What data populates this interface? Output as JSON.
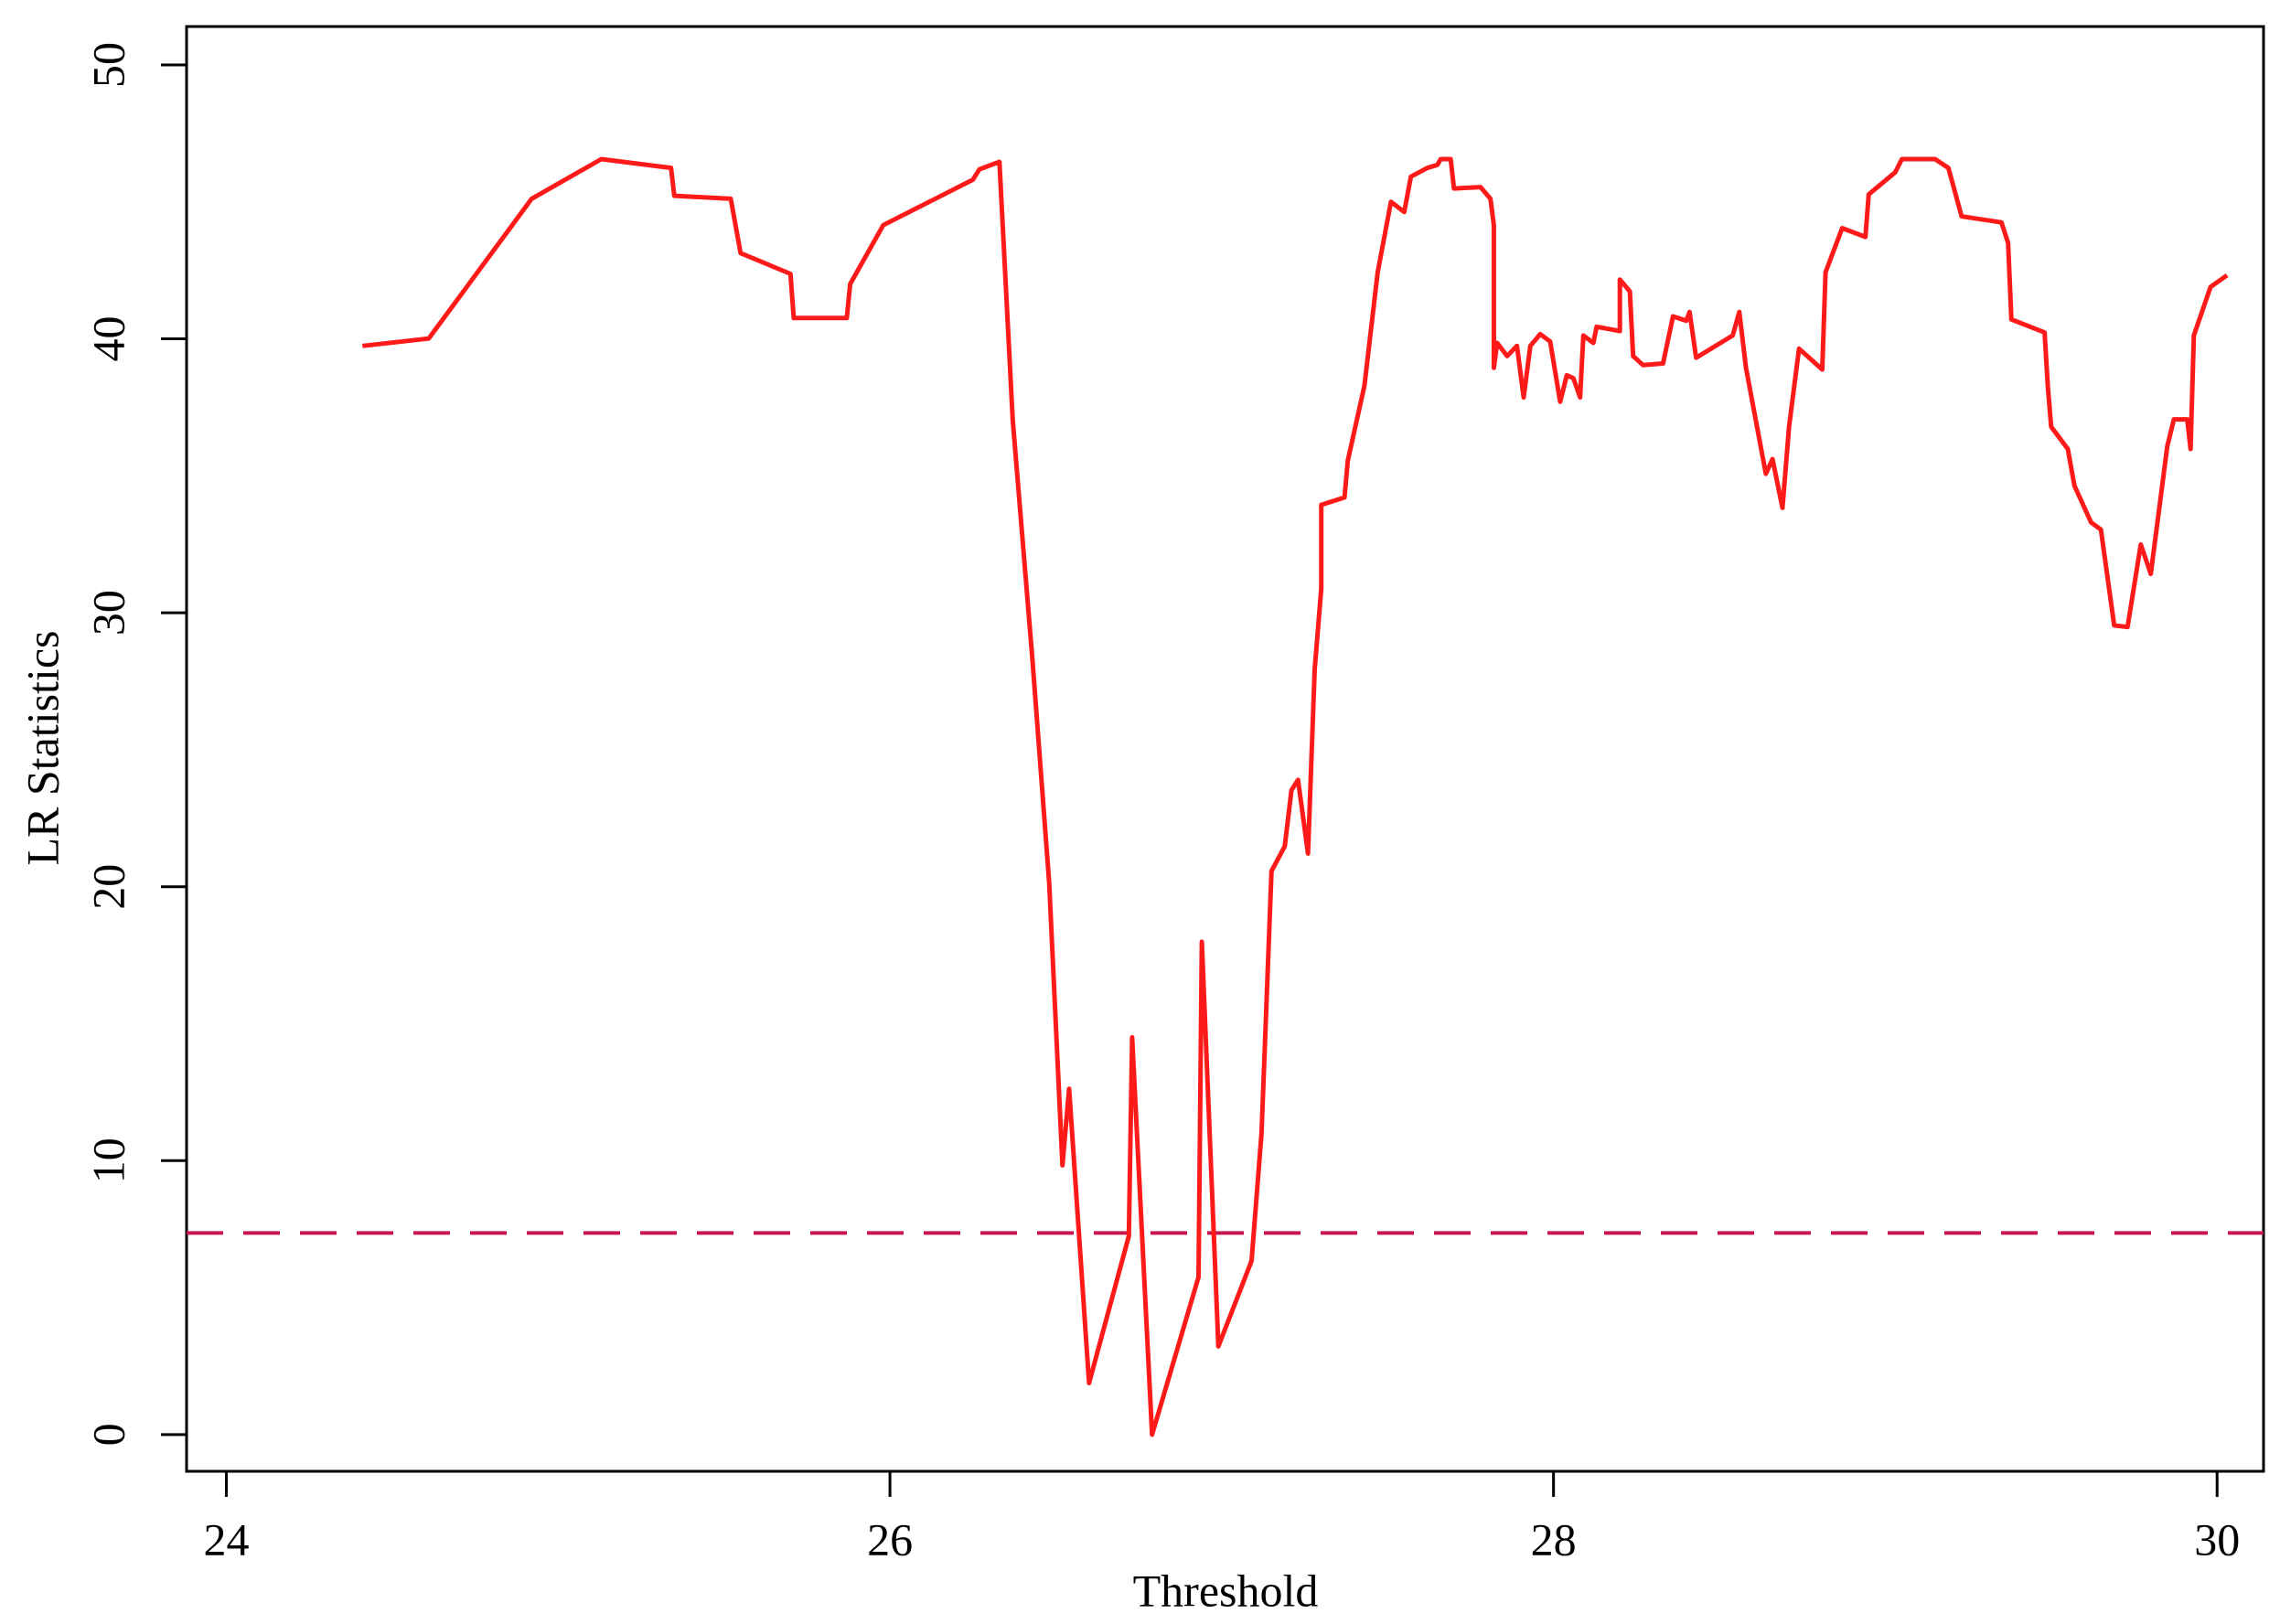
{
  "chart_data": {
    "type": "line",
    "x_label": "Threshold",
    "y_label": "LR Statistics",
    "x": [
      24.41,
      24.61,
      24.92,
      25.13,
      25.34,
      25.35,
      25.52,
      25.55,
      25.7,
      25.71,
      25.87,
      25.88,
      25.98,
      26.25,
      26.27,
      26.33,
      26.37,
      26.43,
      26.48,
      26.52,
      26.54,
      26.6,
      26.72,
      26.73,
      26.79,
      26.93,
      26.94,
      26.99,
      27.09,
      27.12,
      27.15,
      27.19,
      27.21,
      27.23,
      27.26,
      27.28,
      27.3,
      27.3,
      27.37,
      27.38,
      27.43,
      27.47,
      27.51,
      27.55,
      27.57,
      27.62,
      27.65,
      27.66,
      27.69,
      27.7,
      27.78,
      27.81,
      27.82,
      27.82,
      27.83,
      27.86,
      27.89,
      27.91,
      27.93,
      27.96,
      27.99,
      28.02,
      28.04,
      28.06,
      28.08,
      28.09,
      28.12,
      28.13,
      28.2,
      28.2,
      28.23,
      28.24,
      28.27,
      28.33,
      28.36,
      28.4,
      28.41,
      28.43,
      28.54,
      28.56,
      28.58,
      28.64,
      28.66,
      28.69,
      28.71,
      28.74,
      28.81,
      28.82,
      28.87,
      28.94,
      28.95,
      29.03,
      29.05,
      29.15,
      29.19,
      29.23,
      29.35,
      29.37,
      29.38,
      29.48,
      29.49,
      29.5,
      29.55,
      29.57,
      29.62,
      29.65,
      29.69,
      29.73,
      29.77,
      29.8,
      29.85,
      29.87,
      29.91,
      29.92,
      29.93,
      29.98,
      30.03
    ],
    "values": [
      39.74,
      40.01,
      45.11,
      46.56,
      46.24,
      45.22,
      45.11,
      43.13,
      42.37,
      40.76,
      40.76,
      42.0,
      44.15,
      45.81,
      46.19,
      46.46,
      37.06,
      28.2,
      20.14,
      9.83,
      12.62,
      1.88,
      7.25,
      14.5,
      0,
      5.75,
      17.99,
      3.22,
      6.34,
      11.01,
      20.57,
      21.48,
      23.52,
      23.9,
      21.21,
      27.93,
      30.88,
      33.94,
      34.21,
      35.55,
      38.29,
      42.43,
      45.0,
      44.63,
      45.92,
      46.24,
      46.35,
      46.56,
      46.56,
      45.49,
      45.54,
      45.11,
      44.15,
      38.94,
      39.85,
      39.37,
      39.74,
      37.86,
      39.74,
      40.17,
      39.9,
      37.7,
      38.67,
      38.56,
      37.86,
      40.12,
      39.85,
      40.44,
      40.28,
      42.16,
      41.73,
      39.37,
      39.04,
      39.1,
      40.82,
      40.66,
      40.98,
      39.31,
      40.12,
      40.98,
      38.94,
      35.07,
      35.61,
      33.83,
      36.79,
      39.64,
      38.88,
      42.43,
      44.04,
      43.72,
      45.27,
      46.08,
      46.56,
      46.56,
      46.24,
      44.47,
      44.25,
      43.5,
      40.71,
      40.23,
      38.24,
      36.79,
      35.98,
      34.64,
      33.3,
      33.03,
      29.54,
      29.48,
      32.49,
      31.42,
      36.09,
      37.06,
      37.06,
      35.98,
      40.12,
      41.89,
      42.32
    ],
    "color": "#ff1a1a",
    "hline": 7.36,
    "hline_color": "#c8174f",
    "hline_dashed": true,
    "xlim": [
      23.88,
      30.14
    ],
    "ylim": [
      -1.34,
      51.4
    ],
    "xticks": [
      24,
      26,
      28,
      30
    ],
    "yticks": [
      0,
      10,
      20,
      30,
      40,
      50
    ]
  }
}
